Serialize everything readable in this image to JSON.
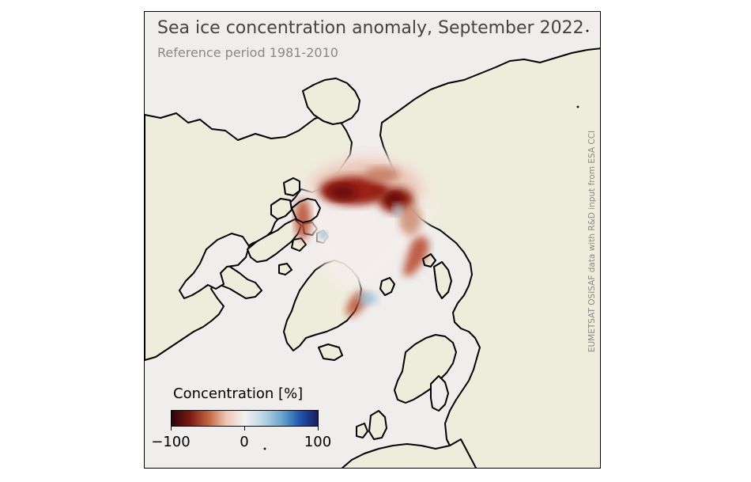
{
  "map": {
    "title": "Sea ice concentration anomaly, September 2022",
    "subtitle": "Reference period 1981-2010",
    "credit": "EUMETSAT OSISAF data with R&D input from ESA CCI",
    "projection": "polar-stereographic-north",
    "colors": {
      "land": "#eeeddc",
      "ocean": "#f0eded",
      "coastline": "#000000",
      "strong_loss": "#6e0b0b",
      "loss": "#b5452a",
      "weak_loss": "#e8c4b4",
      "neutral": "#f0eded",
      "gain": "#9cc2d6",
      "strong_gain": "#1a1e78"
    }
  },
  "legend": {
    "title": "Concentration [%]",
    "min_label": "−100",
    "mid_label": "0",
    "max_label": "100",
    "colormap": [
      "#2c0408",
      "#7a1912",
      "#c0633e",
      "#efc7b5",
      "#f2f2f2",
      "#bcd6e4",
      "#6ea8cc",
      "#1f58b0",
      "#1a1a5e"
    ]
  }
}
